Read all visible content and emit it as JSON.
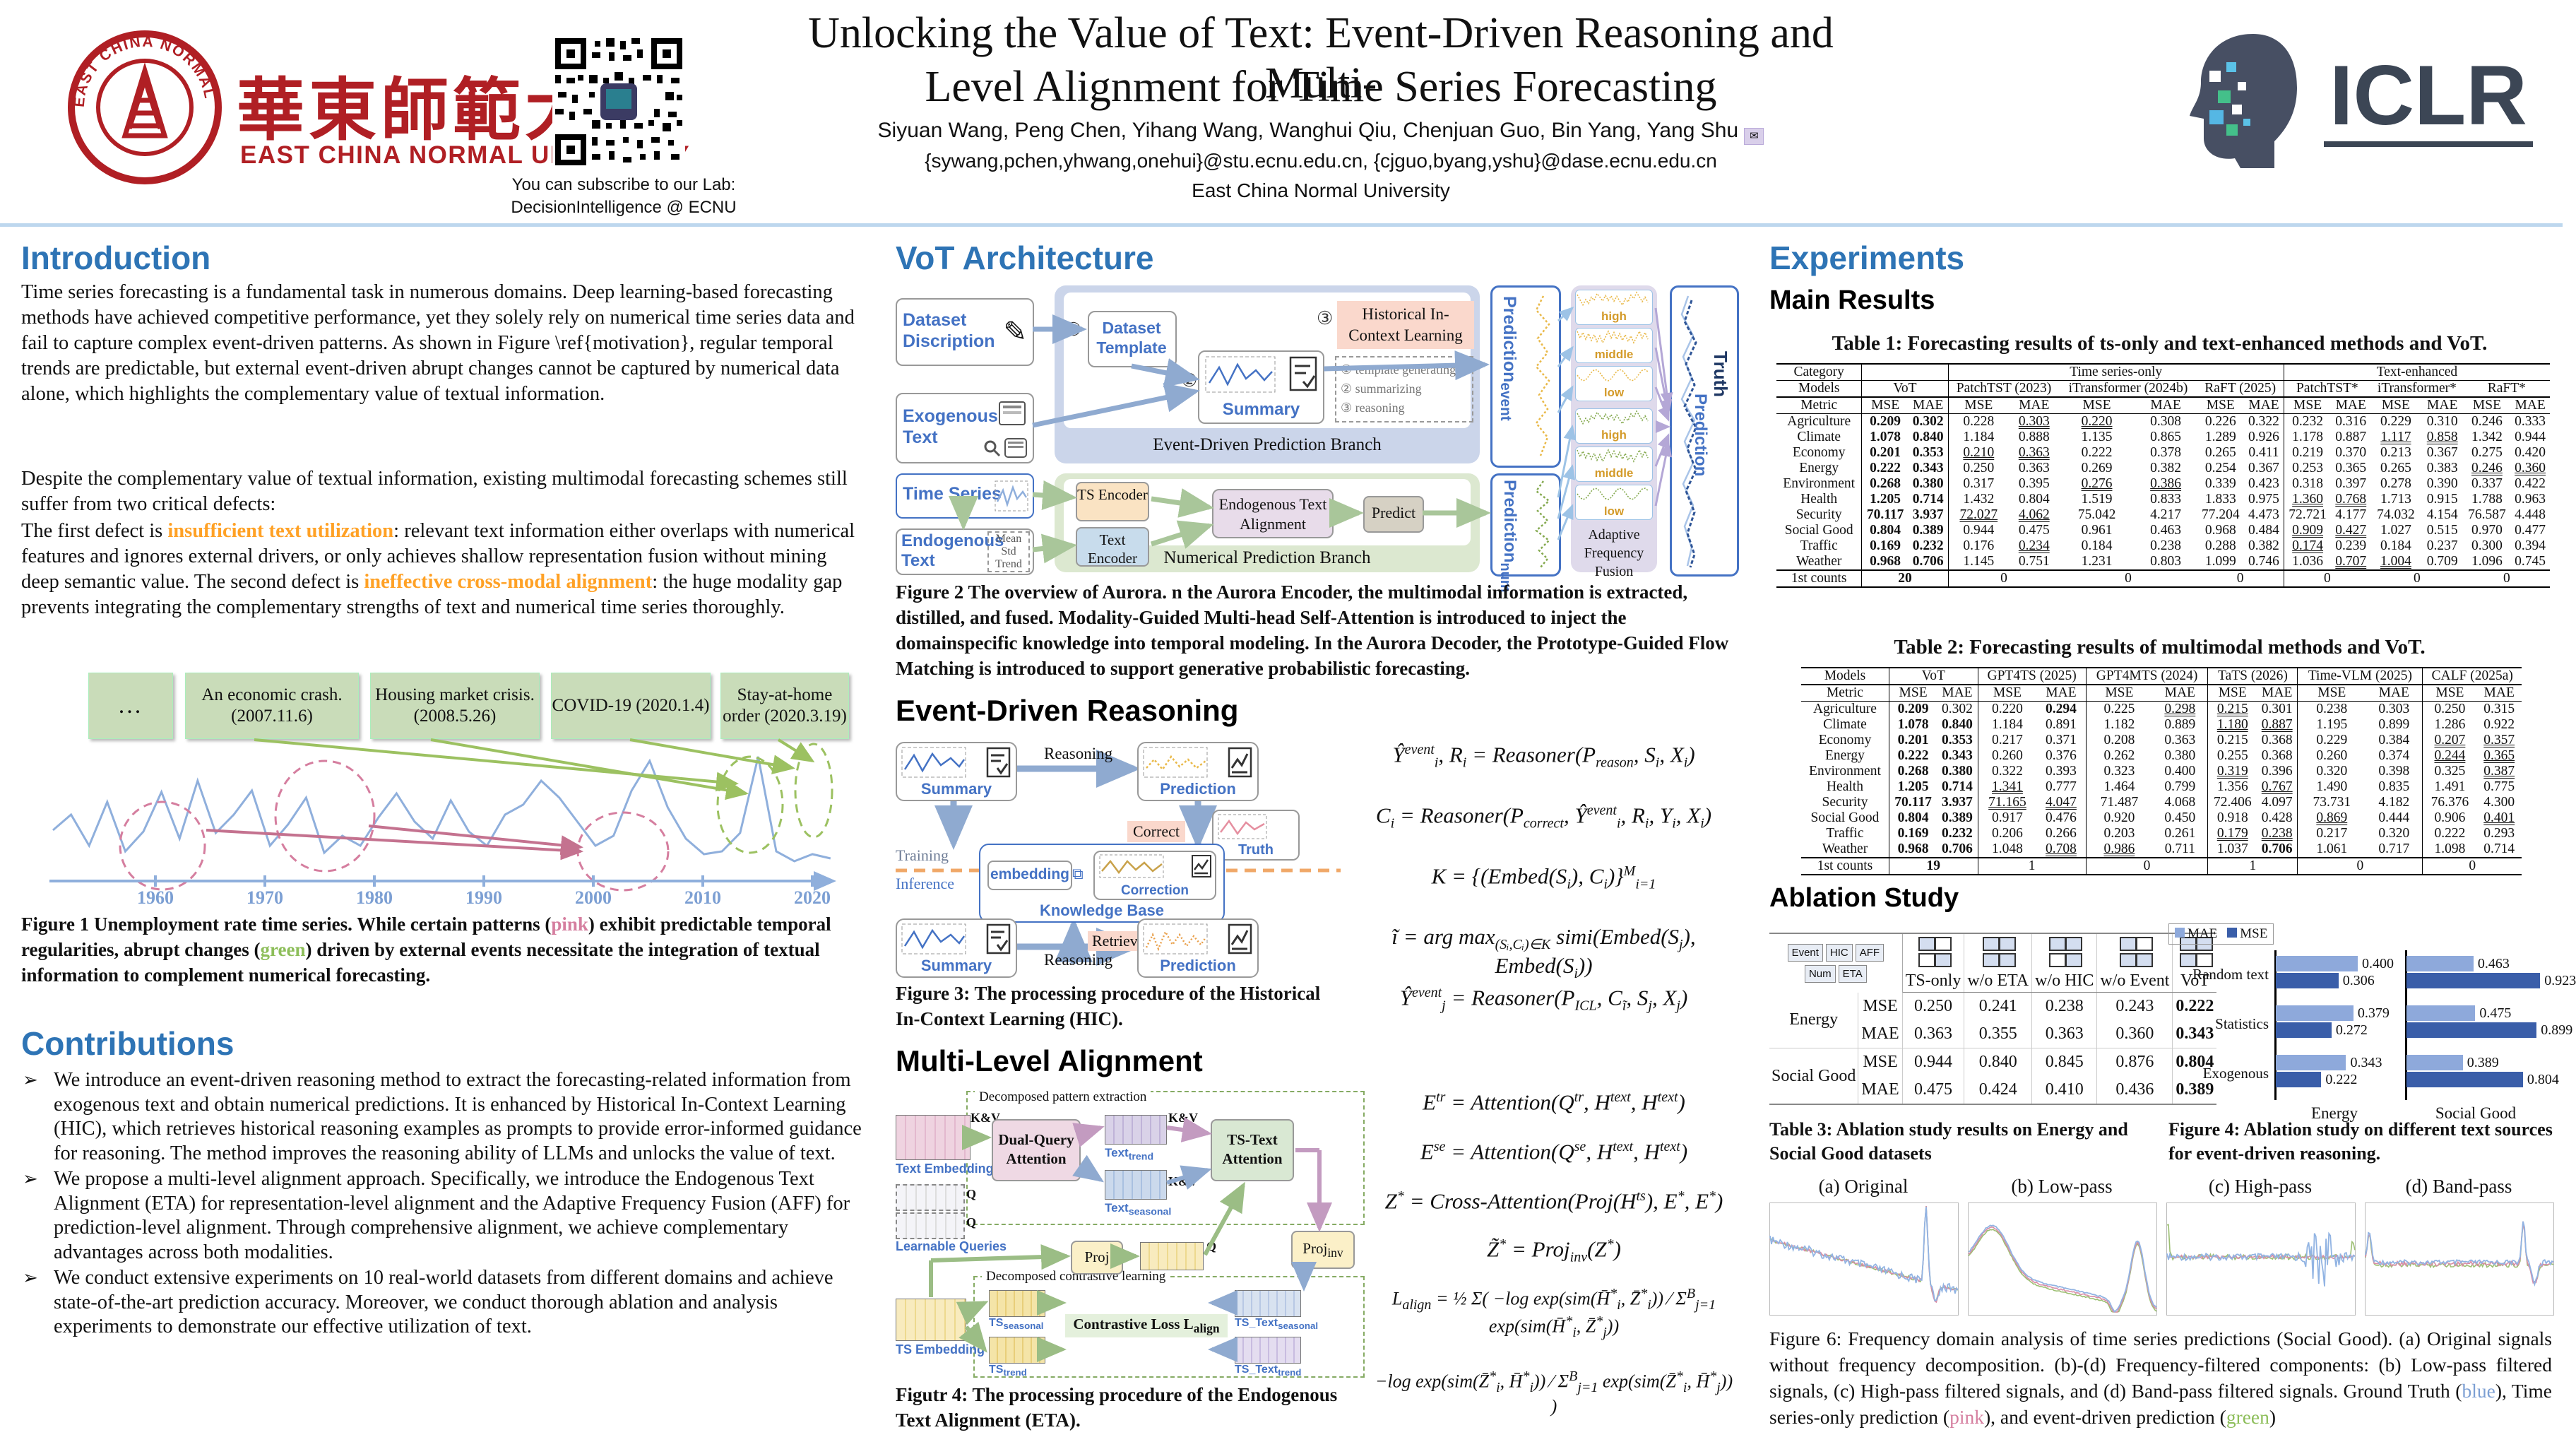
{
  "header": {
    "university_cn": "華東師範大學",
    "university_en": "EAST CHINA NORMAL UNIVERSITY",
    "seal_text": "EAST CHINA NORMAL UNIVERSITY",
    "qr_caption_line1": "You can subscribe to our Lab:",
    "qr_caption_line2": "DecisionIntelligence @ ECNU",
    "title_line1": "Unlocking the Value of Text: Event-Driven Reasoning and Multi-",
    "title_line2": "Level Alignment for Time Series Forecasting",
    "authors": "Siyuan Wang,  Peng Chen,  Yihang Wang, Wanghui Qiu, Chenjuan Guo, Bin Yang, Yang Shu",
    "emails": "{sywang,pchen,yhwang,onehui}@stu.ecnu.edu.cn, {cjguo,byang,yshu}@dase.ecnu.edu.cn",
    "affiliation": "East China Normal University",
    "conference": "ICLR"
  },
  "intro": {
    "heading": "Introduction",
    "p1": "Time series forecasting is a fundamental task in numerous domains. Deep learning-based forecasting methods have achieved competitive performance, yet they solely rely on numerical time series data and fail to capture complex event-driven patterns. As shown in Figure \\ref{motivation}, regular temporal trends are predictable, but external event-driven abrupt changes cannot be captured by numerical data alone, which highlights the complementary value of textual information.",
    "p2": "Despite the complementary value of textual information, existing multimodal forecasting schemes still suffer from two critical defects:",
    "p3_segments": [
      {
        "t": "The first defect is "
      },
      {
        "t": "insufficient text utilization",
        "c": "hl"
      },
      {
        "t": ": relevant text information either overlaps with numerical features and ignores external drivers, or only achieves shallow representation fusion without mining deep semantic value. The second defect is "
      },
      {
        "t": "ineffective cross-modal alignment",
        "c": "hl"
      },
      {
        "t": ": the huge modality gap prevents integrating the complementary strengths of text and numerical time series thoroughly."
      }
    ]
  },
  "figure1": {
    "events": [
      "...",
      "An economic crash. (2007.11.6)",
      "Housing market crisis. (2008.5.26)",
      "COVID-19 (2020.1.4)",
      "Stay-at-home order (2020.3.19)"
    ],
    "ticks": [
      "1960",
      "1970",
      "1980",
      "1990",
      "2000",
      "2010",
      "2020"
    ],
    "caption_segments": [
      {
        "t": "Figure 1 Unemployment rate time series. While certain patterns ("
      },
      {
        "t": "pink",
        "c": "pink"
      },
      {
        "t": ") exhibit predictable temporal regularities, abrupt changes ("
      },
      {
        "t": "green",
        "c": "green"
      },
      {
        "t": ") driven by external events necessitate the integration of textual information to complement numerical forecasting."
      }
    ]
  },
  "contributions": {
    "heading": "Contributions",
    "items": [
      "We introduce an event-driven reasoning method to extract the forecasting-related information from exogenous text and obtain numerical predictions. It is enhanced by Historical In-Context Learning (HIC), which retrieves historical reasoning examples as prompts to provide error-informed guidance for reasoning. The method improves the reasoning ability of LLMs and unlocks the value of text.",
      "We propose a multi-level alignment approach. Specifically, we introduce the Endogenous Text Alignment (ETA) for representation-level alignment and the Adaptive Frequency Fusion (AFF) for prediction-level alignment. Through comprehensive alignment, we achieve complementary advantages across both modalities.",
      "We conduct extensive experiments on 10 real-world datasets from different domains and achieve state-of-the-art prediction accuracy. Moreover, we conduct thorough ablation and analysis experiments to demonstrate our effective utilization of text."
    ]
  },
  "architecture": {
    "heading": "VoT Architecture",
    "dataset_description": "Dataset Discription",
    "exogenous_text": "Exogenous Text",
    "dataset_template": "Dataset Template",
    "summary": "Summary",
    "hic": "Historical In-Context Learning",
    "steps": [
      "template generating",
      "summarizing",
      "reasoning"
    ],
    "step_marks": [
      "①",
      "②",
      "③"
    ],
    "branch_event": "Event-Driven Prediction Branch",
    "branch_num": "Numerical Prediction Branch",
    "time_series": "Time Series",
    "endogenous_text": "Endogenous Text",
    "stats_note": [
      "Mean",
      "Std",
      "Trend"
    ],
    "ts_encoder": "TS Encoder",
    "text_encoder": "Text Encoder",
    "eta": "Endogenous Text Alignment",
    "predict": "Predict",
    "pred_event": "Prediction_{event}",
    "pred_num": "Prediction_{num}",
    "bands": [
      "high",
      "middle",
      "low"
    ],
    "aff": "Adaptive Frequency Fusion",
    "truth": "Truth",
    "prediction": "Prediction",
    "caption": "Figure 2 The overview of Aurora. n the Aurora Encoder, the multimodal information is extracted, distilled, and fused. Modality-Guided Multi-head Self-Attention is introduced to inject the domainspecific knowledge into temporal modeling. In the Aurora Decoder, the Prototype-Guided Flow Matching is introduced to support generative probabilistic forecasting."
  },
  "edr": {
    "heading": "Event-Driven Reasoning",
    "summary": "Summary",
    "reasoning": "Reasoning",
    "prediction": "Prediction",
    "correct": "Correct",
    "truth": "Truth",
    "training": "Training",
    "inference": "Inference",
    "embedding": "embedding",
    "correction": "Correction",
    "kb": "Knowledge Base",
    "retrieval": "Retrieval",
    "equations": [
      "Ŷ^{event}_{i}, R_{i} = Reasoner(P_{reason}, S_{i}, X_{i})",
      "C_{i} = Reasoner(P_{correct}, Ŷ^{event}_{i}, R_{i}, Y_{i}, X_{i})",
      "K = {(Embed(S_{i}), C_{i})}^{M}_{i=1}",
      "ĩ = arg max_{(Sᵢ,Cᵢ)∈K} simi(Embed(S_{j}), Embed(S_{i}))",
      "Ŷ^{event}_{j} = Reasoner(P_{ICL}, C_{ĩ}, S_{j}, X_{j})"
    ],
    "caption": "Figure 3: The processing procedure of the Historical In-Context Learning (HIC)."
  },
  "mla": {
    "heading": "Multi-Level Alignment",
    "dpe": "Decomposed pattern extraction",
    "text_embedding": "Text Embedding",
    "kv": "K&V",
    "q": "Q",
    "dqa": "Dual-Query Attention",
    "learnable": "Learnable Queries",
    "text_trend": "Text_{trend}",
    "text_seasonal": "Text_{seasonal}",
    "tsta": "TS-Text Attention",
    "proj": "Proj",
    "proj_inv": "Proj_{inv}",
    "dcl": "Decomposed contrastive learning",
    "ts_embedding": "TS Embedding",
    "ts_seasonal": "TS_{seasonal}",
    "ts_trend": "TS_{trend}",
    "closs": "Contrastive Loss L_{align}",
    "tst_seasonal": "TS_Text_{seasonal}",
    "tst_trend": "TS_Text_{trend}",
    "equations": [
      "E^{tr} = Attention(Q^{tr}, H^{text}, H^{text})",
      "E^{se} = Attention(Q^{se}, H^{text}, H^{text})",
      "Z^{*} = Cross-Attention(Proj(H^{ts}), E^{*}, E^{*})",
      "Z̃^{*} = Proj_{inv}(Z^{*})",
      "L_{align} = ½ Σ( −log  exp(sim(H̄^{*}_{i}, Z̄^{*}_{i})) ⁄ Σ^{B}_{j=1} exp(sim(H̄^{*}_{i}, Z̄^{*}_{j}))",
      "−log  exp(sim(Z̄^{*}_{i}, H̄^{*}_{i})) ⁄ Σ^{B}_{j=1} exp(sim(Z̄^{*}_{i}, H̄^{*}_{j})) )"
    ],
    "caption": "Figutr 4: The processing procedure of the Endogenous Text Alignment (ETA)."
  },
  "experiments": {
    "heading": "Experiments",
    "main_results": "Main Results",
    "table1": {
      "title": "Table 1: Forecasting results of ts-only and text-enhanced methods and VoT.",
      "category_label": "Category",
      "groups": [
        "Time series-only",
        "Text-enhanced"
      ],
      "models_label": "Models",
      "models": [
        "VoT",
        "PatchTST (2023)",
        "iTransformer (2024b)",
        "RaFT (2025)",
        "PatchTST*",
        "iTransformer*",
        "RaFT*"
      ],
      "metric_label": "Metric",
      "mse": "MSE",
      "mae": "MAE",
      "rows": [
        {
          "name": "Agriculture",
          "v": [
            "0.209*",
            "0.302*",
            "0.228",
            "0.303_",
            "0.220_",
            "0.308",
            "0.226",
            "0.322",
            "0.232",
            "0.316",
            "0.229",
            "0.310",
            "0.246",
            "0.333"
          ]
        },
        {
          "name": "Climate",
          "v": [
            "1.078*",
            "0.840*",
            "1.184",
            "0.888",
            "1.135",
            "0.865",
            "1.289",
            "0.926",
            "1.178",
            "0.887",
            "1.117_",
            "0.858_",
            "1.342",
            "0.944"
          ]
        },
        {
          "name": "Economy",
          "v": [
            "0.201*",
            "0.353*",
            "0.210_",
            "0.363_",
            "0.222",
            "0.378",
            "0.265",
            "0.411",
            "0.219",
            "0.370",
            "0.213",
            "0.367",
            "0.275",
            "0.420"
          ]
        },
        {
          "name": "Energy",
          "v": [
            "0.222*",
            "0.343*",
            "0.250",
            "0.363",
            "0.269",
            "0.382",
            "0.254",
            "0.367",
            "0.253",
            "0.365",
            "0.265",
            "0.383",
            "0.246_",
            "0.360_"
          ]
        },
        {
          "name": "Environment",
          "v": [
            "0.268*",
            "0.380*",
            "0.317",
            "0.395",
            "0.276_",
            "0.386_",
            "0.339",
            "0.423",
            "0.318",
            "0.397",
            "0.278",
            "0.390",
            "0.337",
            "0.422"
          ]
        },
        {
          "name": "Health",
          "v": [
            "1.205*",
            "0.714*",
            "1.432",
            "0.804",
            "1.519",
            "0.833",
            "1.833",
            "0.975",
            "1.360_",
            "0.768_",
            "1.713",
            "0.915",
            "1.788",
            "0.963"
          ]
        },
        {
          "name": "Security",
          "v": [
            "70.117*",
            "3.937*",
            "72.027_",
            "4.062_",
            "75.042",
            "4.217",
            "77.204",
            "4.473",
            "72.721",
            "4.177",
            "74.032",
            "4.154",
            "76.587",
            "4.448"
          ]
        },
        {
          "name": "Social Good",
          "v": [
            "0.804*",
            "0.389*",
            "0.944",
            "0.475",
            "0.961",
            "0.463",
            "0.968",
            "0.484",
            "0.909_",
            "0.427_",
            "1.027",
            "0.515",
            "0.970",
            "0.477"
          ]
        },
        {
          "name": "Traffic",
          "v": [
            "0.169*",
            "0.232*",
            "0.176",
            "0.234_",
            "0.184",
            "0.238",
            "0.288",
            "0.382",
            "0.174_",
            "0.239",
            "0.184",
            "0.237",
            "0.300",
            "0.394"
          ]
        },
        {
          "name": "Weather",
          "v": [
            "0.968*",
            "0.706*",
            "1.145",
            "0.751",
            "1.231",
            "0.803",
            "1.099",
            "0.746",
            "1.036",
            "0.707_",
            "1.004_",
            "0.709",
            "1.096",
            "0.745"
          ]
        }
      ],
      "counts_label": "1st counts",
      "counts": [
        "20*",
        "0",
        "0",
        "0",
        "0",
        "0",
        "0"
      ]
    },
    "table2": {
      "title": "Table 2: Forecasting results of multimodal methods and VoT.",
      "models_label": "Models",
      "models": [
        "VoT",
        "GPT4TS (2025)",
        "GPT4MTS (2024)",
        "TaTS (2026)",
        "Time-VLM (2025)",
        "CALF (2025a)"
      ],
      "metric_label": "Metric",
      "mse": "MSE",
      "mae": "MAE",
      "rows": [
        {
          "name": "Agriculture",
          "v": [
            "0.209*",
            "0.302",
            "0.220",
            "0.294*",
            "0.225",
            "0.298_",
            "0.215_",
            "0.301",
            "0.238",
            "0.303",
            "0.250",
            "0.315"
          ]
        },
        {
          "name": "Climate",
          "v": [
            "1.078*",
            "0.840*",
            "1.184",
            "0.891",
            "1.182",
            "0.889",
            "1.180_",
            "0.887_",
            "1.195",
            "0.899",
            "1.286",
            "0.922"
          ]
        },
        {
          "name": "Economy",
          "v": [
            "0.201*",
            "0.353*",
            "0.217",
            "0.371",
            "0.208",
            "0.363",
            "0.215",
            "0.368",
            "0.229",
            "0.384",
            "0.207_",
            "0.357_"
          ]
        },
        {
          "name": "Energy",
          "v": [
            "0.222*",
            "0.343*",
            "0.260",
            "0.376",
            "0.262",
            "0.380",
            "0.255",
            "0.368",
            "0.260",
            "0.374",
            "0.244_",
            "0.365_"
          ]
        },
        {
          "name": "Environment",
          "v": [
            "0.268*",
            "0.380*",
            "0.322",
            "0.393",
            "0.323",
            "0.400",
            "0.319_",
            "0.396",
            "0.320",
            "0.398",
            "0.325",
            "0.387_"
          ]
        },
        {
          "name": "Health",
          "v": [
            "1.205*",
            "0.714*",
            "1.341_",
            "0.777",
            "1.464",
            "0.799",
            "1.356",
            "0.767_",
            "1.490",
            "0.835",
            "1.491",
            "0.775"
          ]
        },
        {
          "name": "Security",
          "v": [
            "70.117*",
            "3.937*",
            "71.165_",
            "4.047_",
            "71.487",
            "4.068",
            "72.406",
            "4.097",
            "73.731",
            "4.182",
            "76.376",
            "4.300"
          ]
        },
        {
          "name": "Social Good",
          "v": [
            "0.804*",
            "0.389*",
            "0.917",
            "0.476",
            "0.920",
            "0.450",
            "0.918",
            "0.428",
            "0.869_",
            "0.444",
            "0.906",
            "0.401_"
          ]
        },
        {
          "name": "Traffic",
          "v": [
            "0.169*",
            "0.232*",
            "0.206",
            "0.266",
            "0.203",
            "0.261",
            "0.179_",
            "0.238_",
            "0.217",
            "0.320",
            "0.222",
            "0.293"
          ]
        },
        {
          "name": "Weather",
          "v": [
            "0.968*",
            "0.706*",
            "1.048",
            "0.708_",
            "0.986_",
            "0.711",
            "1.037",
            "0.706*",
            "1.061",
            "0.717",
            "1.098",
            "0.714"
          ]
        }
      ],
      "counts_label": "1st counts",
      "counts": [
        "19*",
        "1",
        "0",
        "1",
        "0",
        "0"
      ]
    }
  },
  "ablation": {
    "heading": "Ablation Study",
    "table3": {
      "legend": {
        "event": "Event",
        "hic": "HIC",
        "num": "Num",
        "eta": "ETA",
        "aff": "AFF"
      },
      "cols": [
        "TS-only",
        "w/o ETA",
        "w/o HIC",
        "w/o Event",
        "VoT"
      ],
      "groups": [
        {
          "name": "Energy",
          "rows": [
            [
              "MSE",
              "0.250",
              "0.241",
              "0.238",
              "0.243",
              "0.222*"
            ],
            [
              "MAE",
              "0.363",
              "0.355",
              "0.363",
              "0.360",
              "0.343*"
            ]
          ]
        },
        {
          "name": "Social Good",
          "rows": [
            [
              "MSE",
              "0.944",
              "0.840",
              "0.845",
              "0.876",
              "0.804*"
            ],
            [
              "MAE",
              "0.475",
              "0.424",
              "0.410",
              "0.436",
              "0.389*"
            ]
          ]
        }
      ],
      "caption": "Table 3: Ablation study results on Energy and Social Good datasets"
    },
    "figure4chart": {
      "legend": [
        "MAE",
        "MSE"
      ],
      "categories": [
        "Random text",
        "Statistics",
        "Exogenous"
      ],
      "panels": [
        {
          "label": "Energy",
          "mae": [
            "0.400",
            "0.379",
            "0.343"
          ],
          "mse": [
            "0.306",
            "0.272",
            "0.222"
          ]
        },
        {
          "label": "Social Good",
          "mae": [
            "0.463",
            "0.475",
            "0.389"
          ],
          "mse": [
            "0.923",
            "0.899",
            "0.804"
          ]
        }
      ],
      "caption": "Figure 4: Ablation study on different text sources for event-driven reasoning."
    }
  },
  "figure6": {
    "titles": [
      "(a) Original",
      "(b) Low-pass",
      "(c) High-pass",
      "(d) Band-pass"
    ],
    "caption_segments": [
      {
        "t": "Figure 6: Frequency domain analysis of time series predictions (Social Good).  (a) Original signals without frequency decomposition.  (b)-(d) Frequency-filtered components:  (b) Low-pass filtered signals, (c) High-pass filtered signals, and (d) Band-pass filtered signals. Ground Truth ("
      },
      {
        "t": "blue",
        "c": "bluew"
      },
      {
        "t": "), Time series-only prediction ("
      },
      {
        "t": "pink",
        "c": "pink"
      },
      {
        "t": "), and event-driven prediction ("
      },
      {
        "t": "green",
        "c": "green"
      },
      {
        "t": ")"
      }
    ]
  },
  "colors": {
    "accent_blue": "#2e74b5",
    "highlight_orange": "#FFA125",
    "ecnu_red": "#B01F24",
    "pink_line": "#D57E9F",
    "green_line": "#8DBE5A",
    "blue_line": "#8FAFDC",
    "mae_bar": "#8EA9DB",
    "mse_bar": "#3A5EA9"
  }
}
